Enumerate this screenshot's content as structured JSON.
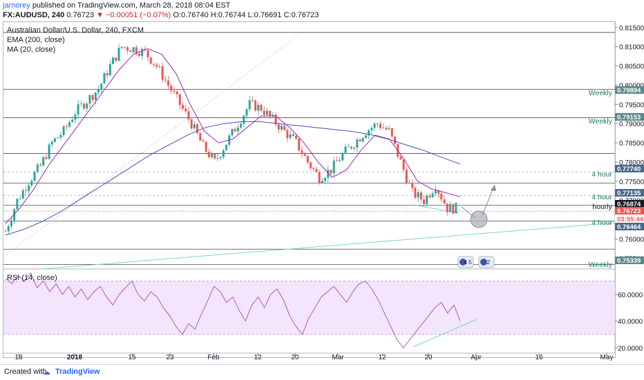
{
  "header": {
    "author": "jarnorey",
    "published_text": "published on TradingView.com, March 28, 2018 08:04 EST",
    "symbol": "FX:AUDUSD, 240",
    "last": "0.76723",
    "change": "▼ −0.00051 (−0.07%)",
    "ohlc": "O:0.76740 H:0.76744 L:0.76691 C:0.76723"
  },
  "legend": {
    "title": "Australian Dollar/U.S. Dollar, 240, FXCM",
    "ema": "EMA (200, close)",
    "ma": "MA (20, close)",
    "rsi": "RSI (14, close)"
  },
  "footer": {
    "created_with": "Created with",
    "brand": "TradingView"
  },
  "colors": {
    "up": "#26a69a",
    "down": "#ef5350",
    "ema": "#3f51b5",
    "ma": "#9c27b0",
    "rsi": "#ab47bc",
    "rsi_band": "#f3e5fc",
    "trendline": "#7bd6c4",
    "level_text": "#1b7a5e"
  },
  "chart_data": [
    {
      "type": "line",
      "title": "Australian Dollar/U.S. Dollar, 240, FXCM",
      "x_ticks": [
        "18",
        "2018",
        "15",
        "23",
        "Feb",
        "12",
        "20",
        "Mar",
        "12",
        "20",
        "Apr",
        "16",
        "May"
      ],
      "y_ticks": [
        "0.81500",
        "0.81000",
        "0.80500",
        "0.80000",
        "0.79500",
        "0.79000",
        "0.78500",
        "0.78000",
        "0.77500",
        "0.77000",
        "0.76500",
        "0.76000",
        "0.75500"
      ],
      "ylim": [
        0.7522,
        0.8164
      ],
      "series": [
        {
          "name": "AUDUSD",
          "values": [
            0.762,
            0.77,
            0.775,
            0.779,
            0.785,
            0.788,
            0.793,
            0.796,
            0.799,
            0.805,
            0.81,
            0.8095,
            0.8085,
            0.805,
            0.8,
            0.795,
            0.79,
            0.784,
            0.78,
            0.785,
            0.79,
            0.795,
            0.794,
            0.791,
            0.788,
            0.785,
            0.78,
            0.776,
            0.778,
            0.782,
            0.785,
            0.788,
            0.79,
            0.788,
            0.78,
            0.772,
            0.77,
            0.774,
            0.768,
            0.768
          ]
        },
        {
          "name": "EMA (200, close)",
          "values": [
            0.761,
            0.7625,
            0.7645,
            0.767,
            0.77,
            0.773,
            0.776,
            0.779,
            0.782,
            0.7845,
            0.787,
            0.789,
            0.79,
            0.7905,
            0.7905,
            0.79,
            0.7895,
            0.789,
            0.7885,
            0.788,
            0.7872,
            0.786,
            0.7845,
            0.783,
            0.7812,
            0.7795
          ]
        },
        {
          "name": "MA (20, close)",
          "values": [
            0.764,
            0.768,
            0.773,
            0.779,
            0.784,
            0.789,
            0.794,
            0.799,
            0.804,
            0.808,
            0.8095,
            0.808,
            0.803,
            0.795,
            0.788,
            0.785,
            0.786,
            0.789,
            0.792,
            0.792,
            0.789,
            0.785,
            0.78,
            0.776,
            0.778,
            0.783,
            0.787,
            0.786,
            0.781,
            0.775,
            0.773,
            0.772,
            0.771
          ]
        }
      ],
      "price_labels": [
        {
          "value": "0.79894",
          "label": "Weekly",
          "color": "#5a8a8a"
        },
        {
          "value": "0.79153",
          "label": "Weekly",
          "color": "#5a8a8a"
        },
        {
          "value": "0.77740",
          "label": "4 hour",
          "color": "#4a6a8a"
        },
        {
          "value": "0.77135",
          "label": "4 hour",
          "color": "#4a6a8a"
        },
        {
          "value": "0.76874",
          "label": "hourly",
          "color": "#131722"
        },
        {
          "value": "0.76723",
          "label": "",
          "color": "#ef5350"
        },
        {
          "value": "03:55:44",
          "label": "",
          "color": "#ef5350"
        },
        {
          "value": "0.76464",
          "label": "4 hour",
          "color": "#4a6a8a"
        },
        {
          "value": "0.75339",
          "label": "Weekly",
          "color": "#5a8a8a"
        }
      ],
      "event_badges": [
        "4 5",
        "2"
      ]
    },
    {
      "type": "line",
      "title": "RSI (14, close)",
      "y_ticks": [
        "60.0000",
        "40.0000",
        "20.0000"
      ],
      "ylim": [
        16,
        78
      ],
      "band": [
        30,
        70
      ],
      "series": [
        {
          "name": "RSI (14, close)",
          "values": [
            72,
            68,
            74,
            70,
            76,
            65,
            70,
            62,
            68,
            60,
            66,
            58,
            64,
            56,
            62,
            66,
            58,
            52,
            60,
            65,
            70,
            60,
            55,
            62,
            58,
            50,
            44,
            36,
            30,
            38,
            34,
            45,
            55,
            66,
            62,
            54,
            58,
            48,
            40,
            52,
            58,
            50,
            60,
            64,
            56,
            44,
            36,
            30,
            42,
            50,
            58,
            62,
            66,
            60,
            54,
            62,
            68,
            70,
            64,
            56,
            46,
            36,
            26,
            20,
            26,
            32,
            38,
            44,
            50,
            54,
            46,
            52,
            40
          ]
        }
      ]
    }
  ]
}
